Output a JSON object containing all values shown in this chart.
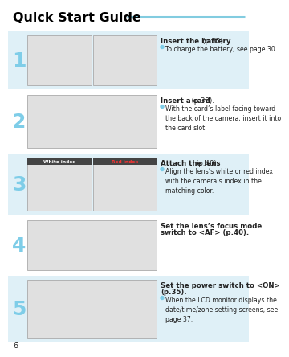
{
  "title": "Quick Start Guide",
  "title_color": "#000000",
  "title_fontsize": 11.5,
  "header_line_color": "#82cce0",
  "bg_color": "#ffffff",
  "step_bg_light": "#dff0f7",
  "step_bg_white": "#ffffff",
  "page_number": "6",
  "steps": [
    {
      "number": "1",
      "number_color": "#7ecde8",
      "heading_bold": "Insert the battery",
      "heading_normal": " (p.32).",
      "bullet": "To charge the battery, see page 30.",
      "bg": "light",
      "two_images": true
    },
    {
      "number": "2",
      "number_color": "#7ecde8",
      "heading_bold": "Insert a card",
      "heading_normal": " (p.32).",
      "bullet": "With the card’s label facing toward\nthe back of the camera, insert it into\nthe card slot.",
      "bg": "white",
      "two_images": false
    },
    {
      "number": "3",
      "number_color": "#7ecde8",
      "heading_bold": "Attach the lens",
      "heading_normal": " (p.40).",
      "bullet": "Align the lens’s white or red index\nwith the camera’s index in the\nmatching color.",
      "bg": "light",
      "two_images": true,
      "label1": "White index",
      "label2": "Red index"
    },
    {
      "number": "4",
      "number_color": "#7ecde8",
      "heading_bold": "Set the lens’s focus mode\nswitch to <AF>",
      "heading_normal": " (p.40).",
      "bullet": null,
      "bg": "white",
      "two_images": false
    },
    {
      "number": "5",
      "number_color": "#7ecde8",
      "heading_bold": "Set the power switch to <ON>",
      "heading_normal": "\n(p.35).",
      "bullet": "When the LCD monitor displays the\ndate/time/zone setting screens, see\npage 37.",
      "bg": "light",
      "two_images": false
    }
  ],
  "bullet_color": "#7ecde8",
  "text_color": "#222222",
  "img_fill": "#e0e0e0",
  "img_border": "#aaaaaa"
}
